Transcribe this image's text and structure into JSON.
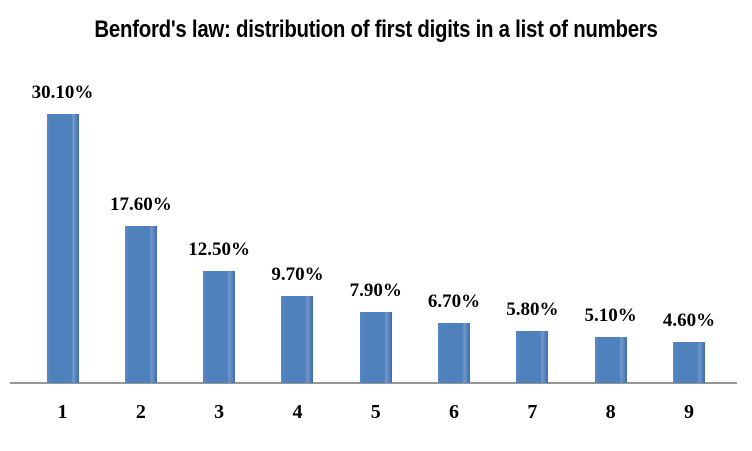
{
  "chart_data": {
    "type": "bar",
    "title": "Benford's law: distribution of first digits in a list of numbers",
    "categories": [
      "1",
      "2",
      "3",
      "4",
      "5",
      "6",
      "7",
      "8",
      "9"
    ],
    "values": [
      30.1,
      17.6,
      12.5,
      9.7,
      7.9,
      6.7,
      5.8,
      5.1,
      4.6
    ],
    "value_labels": [
      "30.10%",
      "17.60%",
      "12.50%",
      "9.70%",
      "7.90%",
      "6.70%",
      "5.80%",
      "5.10%",
      "4.60%"
    ],
    "xlabel": "",
    "ylabel": "",
    "ylim": [
      0,
      33
    ],
    "grid": false,
    "legend": false,
    "bar_color": "#4f81bd",
    "axis_line_color": "#969696",
    "label_color": "#000000",
    "background_color": "#ffffff"
  }
}
